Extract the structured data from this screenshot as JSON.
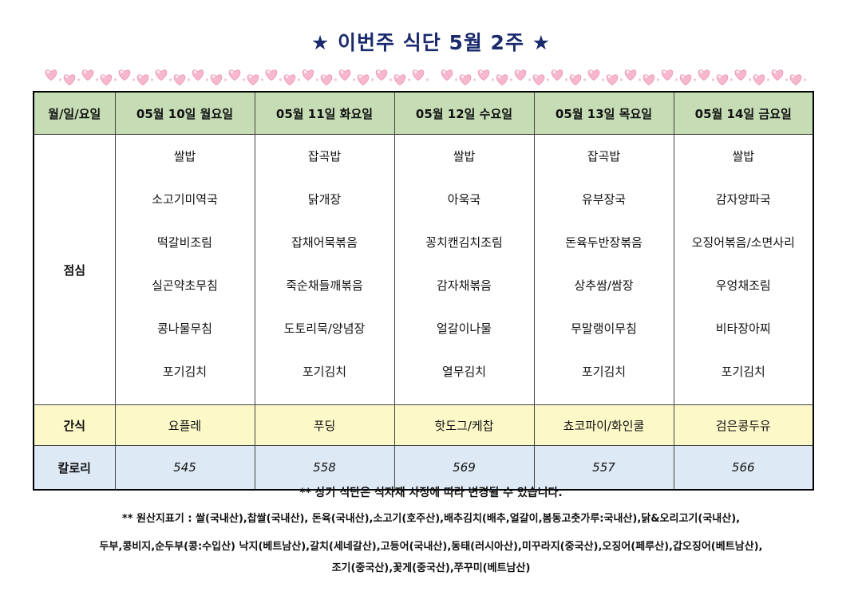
{
  "title": "★ 이번주 식단 5월 2주 ★",
  "table": {
    "corner_label": "월/일/요일",
    "days": [
      "05월 10일 월요일",
      "05월 11일 화요일",
      "05월 12일 수요일",
      "05월 13일 목요일",
      "05월 14일 금요일"
    ],
    "lunch": {
      "label": "점심",
      "menus": [
        [
          "쌀밥",
          "소고기미역국",
          "떡갈비조림",
          "실곤약초무침",
          "콩나물무침",
          "포기김치"
        ],
        [
          "잡곡밥",
          "닭개장",
          "잡채어묵볶음",
          "죽순채들깨볶음",
          "도토리묵/양념장",
          "포기김치"
        ],
        [
          "쌀밥",
          "아욱국",
          "꽁치캔김치조림",
          "감자채볶음",
          "얼갈이나물",
          "열무김치"
        ],
        [
          "잡곡밥",
          "유부장국",
          "돈육두반장볶음",
          "상추쌈/쌈장",
          "무말랭이무침",
          "포기김치"
        ],
        [
          "쌀밥",
          "감자양파국",
          "오징어볶음/소면사리",
          "우엉채조림",
          "비타장아찌",
          "포기김치"
        ]
      ]
    },
    "snack": {
      "label": "간식",
      "items": [
        "요플레",
        "푸딩",
        "핫도그/케찹",
        "쵸코파이/화인쿨",
        "검은콩두유"
      ]
    },
    "calorie": {
      "label": "칼로리",
      "values": [
        "545",
        "558",
        "569",
        "557",
        "566"
      ]
    }
  },
  "notice": "** 상기 식단은 식자재 사정에 따라 변경될 수 있습니다.",
  "origin_lines": [
    "** 원산지표기 : 쌀(국내산),찹쌀(국내산), 돈육(국내산),소고기(호주산),배추김치(배추,얼갈이,봄동고춧가루:국내산),닭&오리고기(국내산),",
    "두부,콩비지,순두부(콩:수입산) 낙지(베트남산),갈치(세네갈산),고등어(국내산),동태(러시아산),미꾸라지(중국산),오징어(페루산),갑오징어(베트남산),",
    "조기(중국산),꽃게(중국산),쭈꾸미(베트남산)"
  ],
  "colors": {
    "title": "#1a2a6c",
    "header_bg": "#c5dcb4",
    "snack_bg": "#fdf8c8",
    "calorie_bg": "#dde9f5",
    "heart": "#f7b8cf"
  },
  "decorations": [
    "heart-garland-left",
    "heart-garland-right"
  ]
}
